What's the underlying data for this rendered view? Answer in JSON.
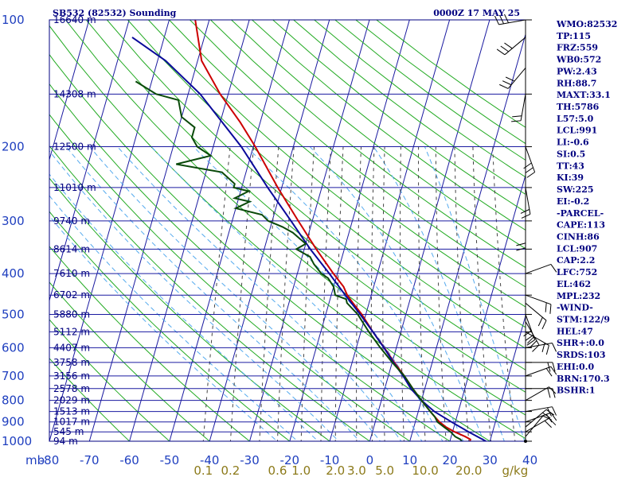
{
  "title_left": "SB532 (82532) Sounding",
  "title_right": "0000Z 17 MAY 25",
  "indices": [
    "WMO:82532",
    "TP:115",
    "FRZ:559",
    "WB0:572",
    "PW:2.43",
    "RH:88.7",
    "MAXT:33.1",
    "TH:5786",
    "L57:5.0",
    "LCL:991",
    "LI:-0.6",
    "SI:0.5",
    "TT:43",
    "KI:39",
    "SW:225",
    "EI:-0.2",
    "-PARCEL-",
    "CAPE:113",
    "CINH:86",
    "LCL:907",
    "CAP:2.2",
    "LFC:752",
    "EL:462",
    "MPL:232",
    "-WIND-",
    "STM:122/9",
    "HEL:47",
    "SHR+:0.0",
    "SRDS:103",
    "EHI:0.0",
    "BRN:170.3",
    "BSHR:1"
  ],
  "chart_data": {
    "type": "line",
    "subtype": "skew-T log-P sounding",
    "xlabel": "mb",
    "temperature_ticks": [
      "-80",
      "-70",
      "-60",
      "-50",
      "-40",
      "-30",
      "-20",
      "-10",
      "0",
      "10",
      "20",
      "30",
      "40"
    ],
    "mixing_ratio_labels": [
      "0.1",
      "0.2",
      "0.6",
      "1.0",
      "2.0",
      "3.0",
      "5.0",
      "10.0",
      "20.0",
      "g/kg"
    ],
    "pressure_levels": [
      {
        "p": 100,
        "label": "100",
        "height": "16640 m"
      },
      {
        "p": 150,
        "label": "",
        "height": "14308 m"
      },
      {
        "p": 200,
        "label": "200",
        "height": "12500 m"
      },
      {
        "p": 250,
        "label": "",
        "height": "11010 m"
      },
      {
        "p": 300,
        "label": "300",
        "height": "9740 m"
      },
      {
        "p": 350,
        "label": "",
        "height": "8614 m"
      },
      {
        "p": 400,
        "label": "400",
        "height": "7610 m"
      },
      {
        "p": 450,
        "label": "",
        "height": "6702 m"
      },
      {
        "p": 500,
        "label": "500",
        "height": "5880 m"
      },
      {
        "p": 550,
        "label": "",
        "height": "5112 m"
      },
      {
        "p": 600,
        "label": "600",
        "height": "4407 m"
      },
      {
        "p": 650,
        "label": "",
        "height": "3758 m"
      },
      {
        "p": 700,
        "label": "700",
        "height": "3156 m"
      },
      {
        "p": 750,
        "label": "",
        "height": "2578 m"
      },
      {
        "p": 800,
        "label": "800",
        "height": "2029 m"
      },
      {
        "p": 850,
        "label": "",
        "height": "1513 m"
      },
      {
        "p": 900,
        "label": "900",
        "height": "1017 m"
      },
      {
        "p": 950,
        "label": "",
        "height": "545 m"
      },
      {
        "p": 1000,
        "label": "1000",
        "height": "94 m"
      }
    ],
    "series": [
      {
        "color": "#cc0000",
        "points": [
          [
            1000,
            25
          ],
          [
            990,
            25
          ],
          [
            975,
            23.5
          ],
          [
            950,
            20.5
          ],
          [
            925,
            18
          ],
          [
            900,
            16
          ],
          [
            875,
            14.5
          ],
          [
            850,
            13
          ],
          [
            800,
            10
          ],
          [
            750,
            7
          ],
          [
            700,
            4
          ],
          [
            650,
            0.5
          ],
          [
            600,
            -3
          ],
          [
            550,
            -7
          ],
          [
            500,
            -11
          ],
          [
            470,
            -14
          ],
          [
            450,
            -16
          ],
          [
            430,
            -17.5
          ],
          [
            400,
            -21
          ],
          [
            350,
            -27
          ],
          [
            300,
            -33.5
          ],
          [
            250,
            -41
          ],
          [
            200,
            -49.5
          ],
          [
            175,
            -55
          ],
          [
            150,
            -62
          ],
          [
            125,
            -69
          ],
          [
            100,
            -73.5
          ]
        ]
      },
      {
        "color": "#0a0a9a",
        "points": [
          [
            1000,
            29
          ],
          [
            950,
            24
          ],
          [
            900,
            19
          ],
          [
            850,
            14
          ],
          [
            800,
            10
          ],
          [
            750,
            6.5
          ],
          [
            700,
            3.7
          ],
          [
            650,
            0.3
          ],
          [
            600,
            -3.1
          ],
          [
            550,
            -7
          ],
          [
            500,
            -11.4
          ],
          [
            450,
            -16.5
          ],
          [
            400,
            -22
          ],
          [
            350,
            -28.5
          ],
          [
            300,
            -35.3
          ],
          [
            250,
            -43.5
          ],
          [
            200,
            -53
          ],
          [
            150,
            -67
          ],
          [
            125,
            -78
          ],
          [
            110,
            -88
          ]
        ]
      },
      {
        "color": "#0a4a0a",
        "points": [
          [
            1000,
            23
          ],
          [
            990,
            22.5
          ],
          [
            975,
            21
          ],
          [
            950,
            19.5
          ],
          [
            925,
            17.5
          ],
          [
            900,
            15.5
          ],
          [
            875,
            14.5
          ],
          [
            850,
            13
          ],
          [
            800,
            10
          ],
          [
            750,
            7
          ],
          [
            700,
            4
          ],
          [
            650,
            0
          ],
          [
            600,
            -4
          ],
          [
            550,
            -8
          ],
          [
            500,
            -12
          ],
          [
            470,
            -15.5
          ],
          [
            460,
            -16
          ],
          [
            450,
            -19
          ],
          [
            430,
            -20
          ],
          [
            410,
            -22
          ],
          [
            400,
            -24
          ],
          [
            380,
            -26.5
          ],
          [
            365,
            -28
          ],
          [
            350,
            -32
          ],
          [
            340,
            -30
          ],
          [
            330,
            -32
          ],
          [
            320,
            -34
          ],
          [
            310,
            -37
          ],
          [
            300,
            -41
          ],
          [
            290,
            -43
          ],
          [
            280,
            -50
          ],
          [
            270,
            -47
          ],
          [
            265,
            -51
          ],
          [
            255,
            -48
          ],
          [
            250,
            -52
          ],
          [
            245,
            -52
          ],
          [
            230,
            -56
          ],
          [
            220,
            -68
          ],
          [
            210,
            -60
          ],
          [
            200,
            -64
          ],
          [
            190,
            -66
          ],
          [
            180,
            -66
          ],
          [
            170,
            -70
          ],
          [
            155,
            -72
          ],
          [
            150,
            -78
          ],
          [
            140,
            -84
          ]
        ]
      }
    ],
    "wind_barbs_present": true
  }
}
